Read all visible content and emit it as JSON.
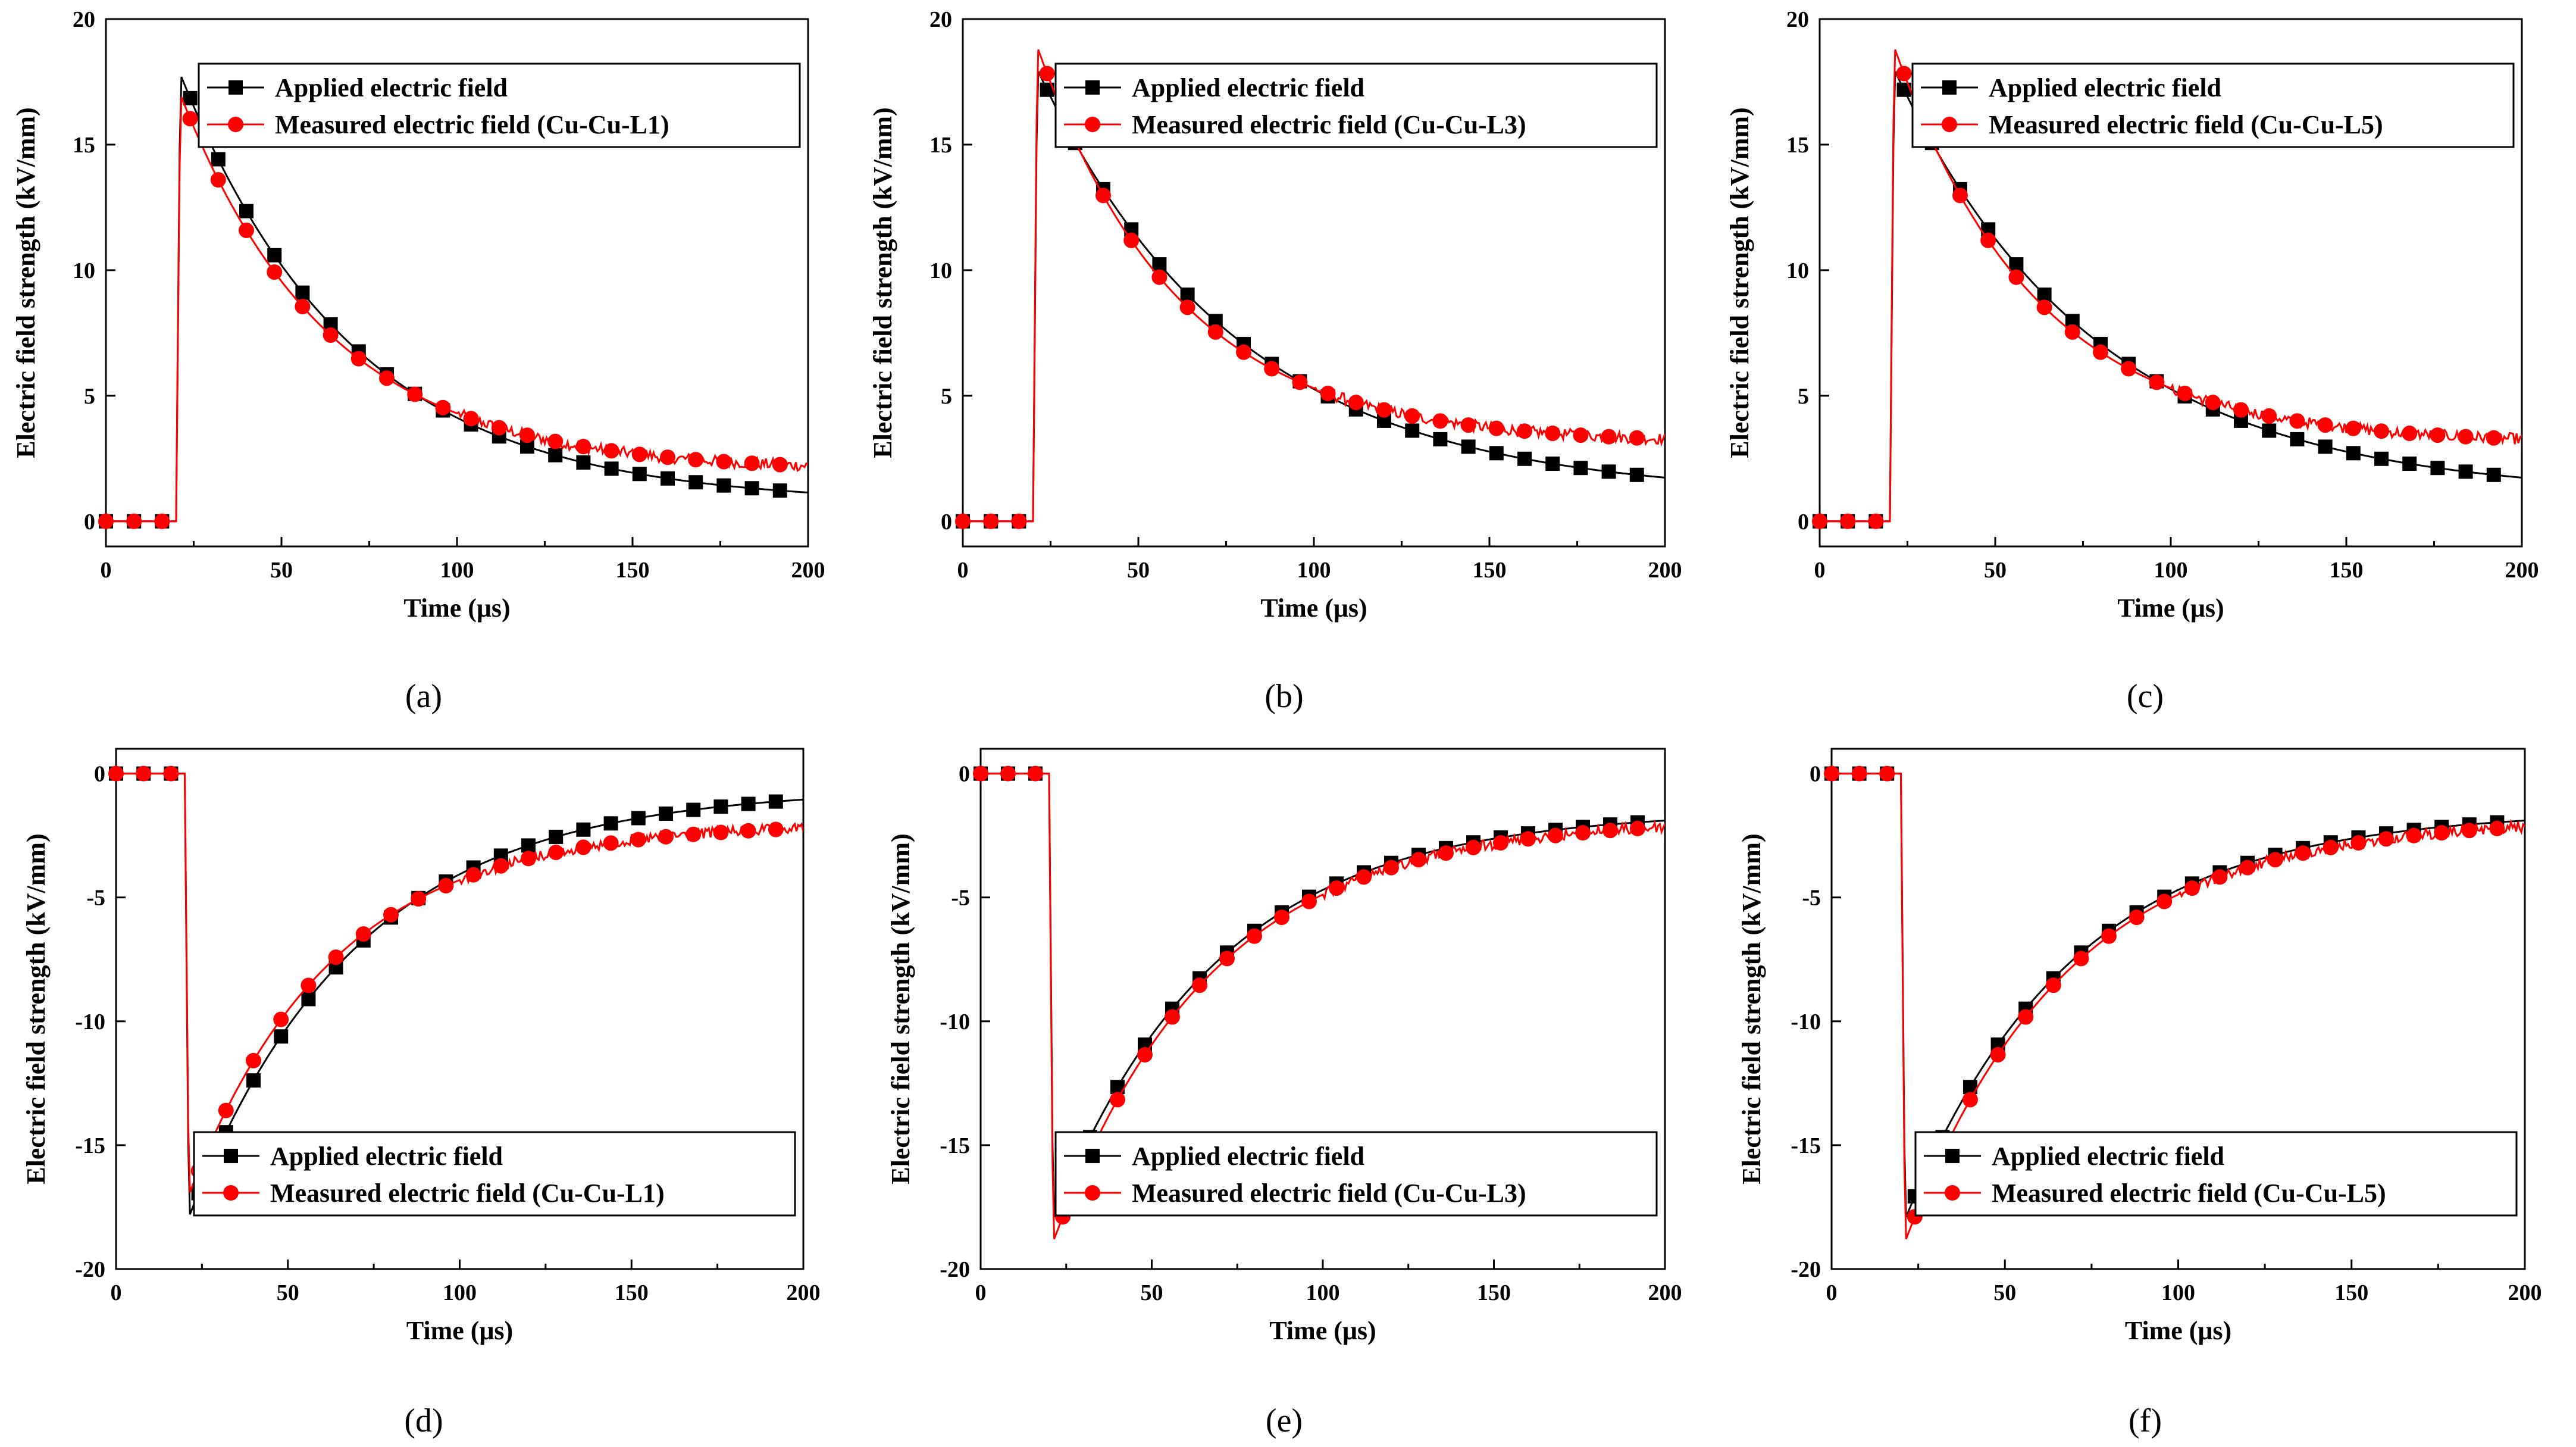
{
  "figure": {
    "colors": {
      "applied": "#000000",
      "measured": "#ff0000"
    }
  },
  "chart_data": [
    {
      "panel": "(a)",
      "type": "line",
      "title": "",
      "xlabel": "Time (μs)",
      "ylabel": "Electric field strength (kV/mm)",
      "xlim": [
        0,
        200
      ],
      "ylim": [
        -1,
        20
      ],
      "xticks": [
        "0",
        "50",
        "100",
        "150",
        "200"
      ],
      "yticks": [
        "0",
        "5",
        "10",
        "15",
        "20"
      ],
      "legend": [
        "Applied electric field",
        "Measured electric field (Cu-Cu-L1)"
      ],
      "legend_position": "top-right",
      "series": [
        {
          "name": "Applied electric field",
          "peak": 17.8,
          "sign": 1,
          "tau": 49,
          "final": 0.7
        },
        {
          "name": "Measured electric field (Cu-Cu-L1)",
          "peak": 17.0,
          "sign": 1,
          "tau": 42,
          "final": 2.0
        }
      ]
    },
    {
      "panel": "(b)",
      "type": "line",
      "title": "",
      "xlabel": "Time (μs)",
      "ylabel": "Electric field strength (kV/mm)",
      "xlim": [
        0,
        200
      ],
      "ylim": [
        -1,
        20
      ],
      "xticks": [
        "0",
        "50",
        "100",
        "150",
        "200"
      ],
      "yticks": [
        "0",
        "5",
        "10",
        "15",
        "20"
      ],
      "legend": [
        "Applied electric field",
        "Measured electric field (Cu-Cu-L3)"
      ],
      "legend_position": "top-right",
      "series": [
        {
          "name": "Applied electric field",
          "peak": 18.0,
          "sign": 1,
          "tau": 57,
          "final": 1.0
        },
        {
          "name": "Measured electric field (Cu-Cu-L3)",
          "peak": 18.9,
          "sign": 1,
          "tau": 40,
          "final": 3.1
        }
      ]
    },
    {
      "panel": "(c)",
      "type": "line",
      "title": "",
      "xlabel": "Time (μs)",
      "ylabel": "Electric field strength (kV/mm)",
      "xlim": [
        0,
        200
      ],
      "ylim": [
        -1,
        20
      ],
      "xticks": [
        "0",
        "50",
        "100",
        "150",
        "200"
      ],
      "yticks": [
        "0",
        "5",
        "10",
        "15",
        "20"
      ],
      "legend": [
        "Applied electric field",
        "Measured electric field (Cu-Cu-L5)"
      ],
      "legend_position": "top-right",
      "series": [
        {
          "name": "Applied electric field",
          "peak": 18.0,
          "sign": 1,
          "tau": 57,
          "final": 1.0
        },
        {
          "name": "Measured electric field (Cu-Cu-L5)",
          "peak": 18.9,
          "sign": 1,
          "tau": 40,
          "final": 3.1
        }
      ]
    },
    {
      "panel": "(d)",
      "type": "line",
      "title": "",
      "xlabel": "Time (μs)",
      "ylabel": "Electric field strength (kV/mm)",
      "xlim": [
        0,
        200
      ],
      "ylim": [
        -20,
        1
      ],
      "xticks": [
        "0",
        "50",
        "100",
        "150",
        "200"
      ],
      "yticks": [
        "-20",
        "-15",
        "-10",
        "-5",
        "0"
      ],
      "legend": [
        "Applied electric field",
        "Measured electric field (Cu-Cu-L1)"
      ],
      "legend_position": "bottom-right",
      "series": [
        {
          "name": "Applied electric field",
          "peak": 17.9,
          "sign": -1,
          "tau": 49,
          "final": 0.6
        },
        {
          "name": "Measured electric field (Cu-Cu-L1)",
          "peak": 17.0,
          "sign": -1,
          "tau": 42,
          "final": 2.0
        }
      ]
    },
    {
      "panel": "(e)",
      "type": "line",
      "title": "",
      "xlabel": "Time (μs)",
      "ylabel": "Electric field strength (kV/mm)",
      "xlim": [
        0,
        200
      ],
      "ylim": [
        -20,
        1
      ],
      "xticks": [
        "0",
        "50",
        "100",
        "150",
        "200"
      ],
      "yticks": [
        "-20",
        "-15",
        "-10",
        "-5",
        "0"
      ],
      "legend": [
        "Applied electric field",
        "Measured electric field (Cu-Cu-L3)"
      ],
      "legend_position": "bottom-right",
      "series": [
        {
          "name": "Applied electric field",
          "peak": 18.0,
          "sign": -1,
          "tau": 48,
          "final": 1.5
        },
        {
          "name": "Measured electric field (Cu-Cu-L3)",
          "peak": 18.9,
          "sign": -1,
          "tau": 46,
          "final": 1.8
        }
      ]
    },
    {
      "panel": "(f)",
      "type": "line",
      "title": "",
      "xlabel": "Time (μs)",
      "ylabel": "Electric field strength (kV/mm)",
      "xlim": [
        0,
        200
      ],
      "ylim": [
        -20,
        1
      ],
      "xticks": [
        "0",
        "50",
        "100",
        "150",
        "200"
      ],
      "yticks": [
        "-20",
        "-15",
        "-10",
        "-5",
        "0"
      ],
      "legend": [
        "Applied electric field",
        "Measured electric field (Cu-Cu-L5)"
      ],
      "legend_position": "bottom-right",
      "series": [
        {
          "name": "Applied electric field",
          "peak": 18.0,
          "sign": -1,
          "tau": 48,
          "final": 1.5
        },
        {
          "name": "Measured electric field (Cu-Cu-L5)",
          "peak": 18.9,
          "sign": -1,
          "tau": 46,
          "final": 1.8
        }
      ]
    }
  ]
}
